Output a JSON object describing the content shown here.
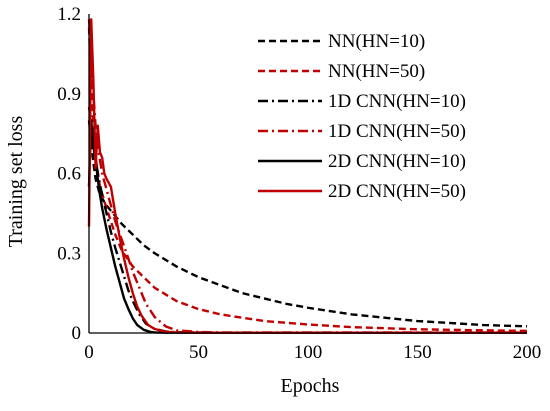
{
  "chart_data": {
    "type": "line",
    "xlabel": "Epochs",
    "ylabel": "Training set loss",
    "xlim": [
      0,
      200
    ],
    "ylim": [
      0,
      1.2
    ],
    "x_ticks": [
      0,
      50,
      100,
      150,
      200
    ],
    "y_ticks": [
      0,
      0.3,
      0.6,
      0.9,
      1.2
    ],
    "x_tick_labels": [
      "0",
      "50",
      "100",
      "150",
      "200"
    ],
    "y_tick_labels": [
      "0",
      "0.3",
      "0.6",
      "0.9",
      "1.2"
    ],
    "grid": false,
    "legend_position": "top-right",
    "series": [
      {
        "name": "NN(HN=10)",
        "color": "#000000",
        "dash": "dashed",
        "x": [
          0,
          1,
          2,
          3,
          5,
          8,
          10,
          15,
          20,
          25,
          30,
          40,
          50,
          60,
          70,
          80,
          90,
          100,
          120,
          150,
          180,
          200
        ],
        "y": [
          0.8,
          0.72,
          0.64,
          0.58,
          0.52,
          0.48,
          0.46,
          0.41,
          0.37,
          0.33,
          0.3,
          0.25,
          0.21,
          0.18,
          0.15,
          0.13,
          0.11,
          0.095,
          0.07,
          0.045,
          0.03,
          0.025
        ]
      },
      {
        "name": "NN(HN=50)",
        "color": "#c00000",
        "dash": "dashed",
        "x": [
          0,
          1,
          2,
          3,
          5,
          8,
          10,
          12,
          15,
          20,
          25,
          30,
          40,
          50,
          60,
          80,
          100,
          120,
          150,
          180,
          200
        ],
        "y": [
          1.15,
          0.95,
          0.78,
          0.66,
          0.55,
          0.47,
          0.42,
          0.37,
          0.31,
          0.25,
          0.21,
          0.17,
          0.12,
          0.09,
          0.07,
          0.045,
          0.032,
          0.022,
          0.014,
          0.01,
          0.008
        ]
      },
      {
        "name": "1D CNN(HN=10)",
        "color": "#000000",
        "dash": "dashdot",
        "x": [
          0,
          1,
          2,
          3,
          4,
          6,
          8,
          10,
          12,
          15,
          18,
          20,
          23,
          26,
          30,
          35,
          40,
          50,
          60,
          100,
          150,
          200
        ],
        "y": [
          0.85,
          0.8,
          0.72,
          0.66,
          0.6,
          0.52,
          0.45,
          0.38,
          0.32,
          0.24,
          0.16,
          0.12,
          0.07,
          0.035,
          0.015,
          0.006,
          0.003,
          0.002,
          0.001,
          0.001,
          0.001,
          0.001
        ]
      },
      {
        "name": "1D CNN(HN=50)",
        "color": "#c00000",
        "dash": "dashdot",
        "x": [
          0,
          1,
          2,
          3,
          4,
          5,
          6,
          8,
          10,
          12,
          15,
          18,
          20,
          23,
          26,
          30,
          35,
          40,
          50,
          60,
          100,
          150,
          200
        ],
        "y": [
          1.18,
          1.05,
          0.9,
          0.78,
          0.7,
          0.65,
          0.6,
          0.54,
          0.48,
          0.42,
          0.35,
          0.28,
          0.23,
          0.17,
          0.11,
          0.06,
          0.025,
          0.01,
          0.004,
          0.002,
          0.002,
          0.002,
          0.002
        ]
      },
      {
        "name": "2D CNN(HN=10)",
        "color": "#000000",
        "dash": "solid",
        "x": [
          0,
          1,
          2,
          3,
          4,
          5,
          6,
          8,
          10,
          12,
          14,
          16,
          18,
          20,
          22,
          25,
          28,
          30,
          35,
          40,
          50,
          100,
          150,
          200
        ],
        "y": [
          0.55,
          0.8,
          0.7,
          0.65,
          0.58,
          0.52,
          0.47,
          0.39,
          0.32,
          0.25,
          0.19,
          0.13,
          0.09,
          0.055,
          0.03,
          0.012,
          0.004,
          0.002,
          0.001,
          0.001,
          0.001,
          0.001,
          0.001,
          0.001
        ]
      },
      {
        "name": "2D CNN(HN=50)",
        "color": "#c00000",
        "dash": "solid",
        "x": [
          0,
          1,
          2,
          3,
          4,
          5,
          6,
          7,
          8,
          10,
          12,
          14,
          16,
          18,
          20,
          22,
          24,
          27,
          30,
          35,
          40,
          50,
          100,
          150,
          200
        ],
        "y": [
          0.4,
          1.18,
          0.95,
          0.62,
          0.78,
          0.68,
          0.66,
          0.6,
          0.58,
          0.55,
          0.45,
          0.36,
          0.28,
          0.21,
          0.15,
          0.1,
          0.065,
          0.03,
          0.015,
          0.005,
          0.002,
          0.001,
          0.001,
          0.001,
          0.001
        ]
      }
    ]
  }
}
